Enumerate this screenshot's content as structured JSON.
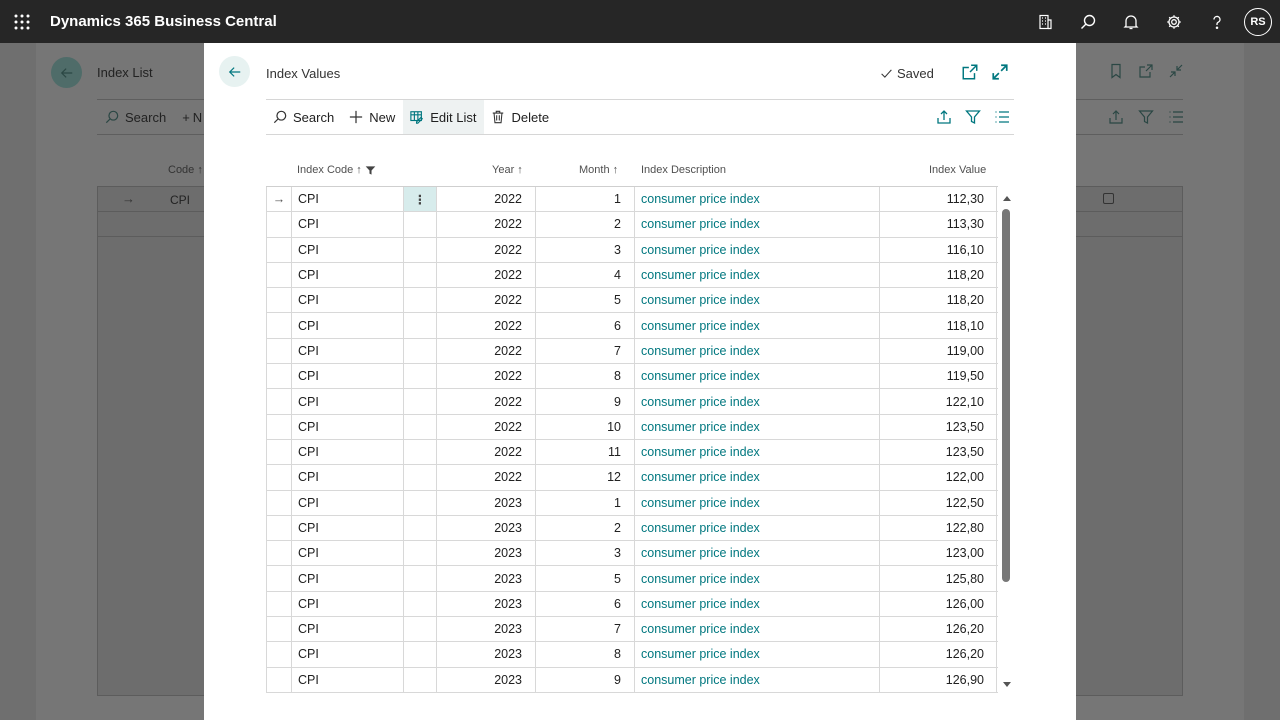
{
  "app": {
    "title": "Dynamics 365 Business Central",
    "user_initials": "RS"
  },
  "background_page": {
    "title": "Index List",
    "search_label": "Search",
    "new_label_partial": "N",
    "code_header": "Code",
    "row_value": "CPI"
  },
  "modal": {
    "title": "Index Values",
    "saved_label": "Saved",
    "actions": {
      "search": "Search",
      "new": "New",
      "edit_list": "Edit List",
      "delete": "Delete"
    },
    "columns": {
      "index_code": "Index Code",
      "year": "Year",
      "month": "Month",
      "description": "Index Description",
      "value": "Index Value"
    },
    "rows": [
      {
        "code": "CPI",
        "year": "2022",
        "month": "1",
        "description": "consumer price index",
        "value": "112,30"
      },
      {
        "code": "CPI",
        "year": "2022",
        "month": "2",
        "description": "consumer price index",
        "value": "113,30"
      },
      {
        "code": "CPI",
        "year": "2022",
        "month": "3",
        "description": "consumer price index",
        "value": "116,10"
      },
      {
        "code": "CPI",
        "year": "2022",
        "month": "4",
        "description": "consumer price index",
        "value": "118,20"
      },
      {
        "code": "CPI",
        "year": "2022",
        "month": "5",
        "description": "consumer price index",
        "value": "118,20"
      },
      {
        "code": "CPI",
        "year": "2022",
        "month": "6",
        "description": "consumer price index",
        "value": "118,10"
      },
      {
        "code": "CPI",
        "year": "2022",
        "month": "7",
        "description": "consumer price index",
        "value": "119,00"
      },
      {
        "code": "CPI",
        "year": "2022",
        "month": "8",
        "description": "consumer price index",
        "value": "119,50"
      },
      {
        "code": "CPI",
        "year": "2022",
        "month": "9",
        "description": "consumer price index",
        "value": "122,10"
      },
      {
        "code": "CPI",
        "year": "2022",
        "month": "10",
        "description": "consumer price index",
        "value": "123,50"
      },
      {
        "code": "CPI",
        "year": "2022",
        "month": "11",
        "description": "consumer price index",
        "value": "123,50"
      },
      {
        "code": "CPI",
        "year": "2022",
        "month": "12",
        "description": "consumer price index",
        "value": "122,00"
      },
      {
        "code": "CPI",
        "year": "2023",
        "month": "1",
        "description": "consumer price index",
        "value": "122,50"
      },
      {
        "code": "CPI",
        "year": "2023",
        "month": "2",
        "description": "consumer price index",
        "value": "122,80"
      },
      {
        "code": "CPI",
        "year": "2023",
        "month": "3",
        "description": "consumer price index",
        "value": "123,00"
      },
      {
        "code": "CPI",
        "year": "2023",
        "month": "5",
        "description": "consumer price index",
        "value": "125,80"
      },
      {
        "code": "CPI",
        "year": "2023",
        "month": "6",
        "description": "consumer price index",
        "value": "126,00"
      },
      {
        "code": "CPI",
        "year": "2023",
        "month": "7",
        "description": "consumer price index",
        "value": "126,20"
      },
      {
        "code": "CPI",
        "year": "2023",
        "month": "8",
        "description": "consumer price index",
        "value": "126,20"
      },
      {
        "code": "CPI",
        "year": "2023",
        "month": "9",
        "description": "consumer price index",
        "value": "126,90"
      }
    ]
  },
  "colors": {
    "accent": "#00777f",
    "topbar": "#262626",
    "selected_cell": "#d7ecec"
  }
}
